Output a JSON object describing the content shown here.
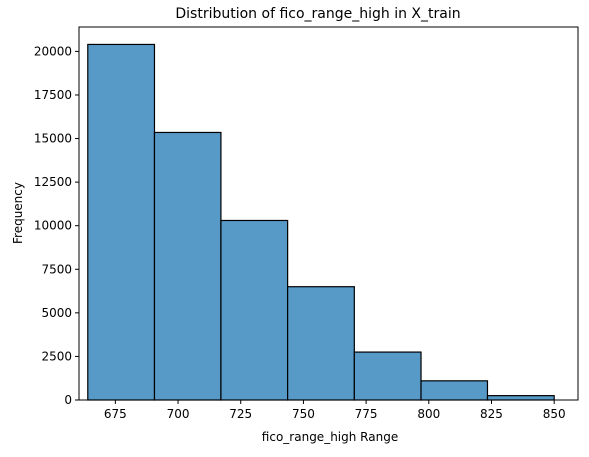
{
  "chart_data": {
    "type": "bar",
    "title": "Distribution of fico_range_high in X_train",
    "xlabel": "fico_range_high Range",
    "ylabel": "Frequency",
    "xlim": [
      660.5,
      859.5
    ],
    "ylim": [
      0,
      21400
    ],
    "bins": [
      {
        "start": 664,
        "end": 690.6,
        "value": 20400
      },
      {
        "start": 690.6,
        "end": 717.1,
        "value": 15350
      },
      {
        "start": 717.1,
        "end": 743.7,
        "value": 10300
      },
      {
        "start": 743.7,
        "end": 770.3,
        "value": 6500
      },
      {
        "start": 770.3,
        "end": 796.9,
        "value": 2750
      },
      {
        "start": 796.9,
        "end": 823.4,
        "value": 1100
      },
      {
        "start": 823.4,
        "end": 850,
        "value": 250
      }
    ],
    "x_ticks": [
      675,
      700,
      725,
      750,
      775,
      800,
      825,
      850
    ],
    "y_ticks": [
      0,
      2500,
      5000,
      7500,
      10000,
      12500,
      15000,
      17500,
      20000
    ],
    "bar_color": "#5799c7",
    "edge_color": "#000000",
    "grid": false
  }
}
